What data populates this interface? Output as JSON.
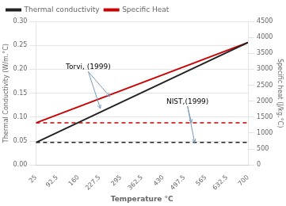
{
  "chart_data": {
    "type": "line",
    "xlabel": "Temperature °C",
    "ylabel": "Thermal Conductivity (W/m.°C)",
    "y2label": "Specific heat (J/kg.°C)",
    "x": [
      25,
      700
    ],
    "series": [
      {
        "name": "Thermal conductivity",
        "color": "#222222",
        "line_style": "solid",
        "values": [
          0.047,
          0.256
        ]
      },
      {
        "color": "#222222",
        "line_style": "dashed",
        "values": [
          0.047,
          0.047
        ]
      },
      {
        "name": "Specific Heat",
        "color": "#cc0000",
        "line_style": "solid",
        "values": [
          0.088,
          0.256
        ]
      },
      {
        "color": "#cc0000",
        "line_style": "dashed",
        "values": [
          0.088,
          0.088
        ]
      }
    ],
    "xlim": [
      25,
      700
    ],
    "xticks": [
      25,
      92.5,
      160,
      227.5,
      295,
      362.5,
      430,
      497.5,
      565,
      632.5,
      700
    ],
    "ylim": [
      0,
      0.3
    ],
    "yticks": [
      {
        "value": 0,
        "label": "0.00"
      },
      0.05,
      {
        "value": 0.1,
        "label": "0.10"
      },
      0.15,
      {
        "value": 0.2,
        "label": "0.20"
      },
      0.25,
      {
        "value": 0.3,
        "label": "0.30"
      }
    ],
    "y2lim": [
      0,
      4500
    ],
    "y2ticks": [
      0,
      500,
      1000,
      1500,
      2000,
      2500,
      3000,
      3500,
      4000,
      4500
    ],
    "grid": "y",
    "legend": "upper left",
    "annotations": [
      {
        "text": "Torvi, (1999)",
        "x": 120,
        "y": 0.2,
        "color": "#7799bb",
        "arrows": [
          {
            "x": 230,
            "y": 0.118
          },
          {
            "x": 260,
            "y": 0.143
          }
        ]
      },
      {
        "text": "NIST,(1999)",
        "x": 440,
        "y": 0.128,
        "color": "#7799bb",
        "arrows": [
          {
            "x": 520,
            "y": 0.088
          },
          {
            "x": 530,
            "y": 0.047
          }
        ]
      }
    ]
  }
}
